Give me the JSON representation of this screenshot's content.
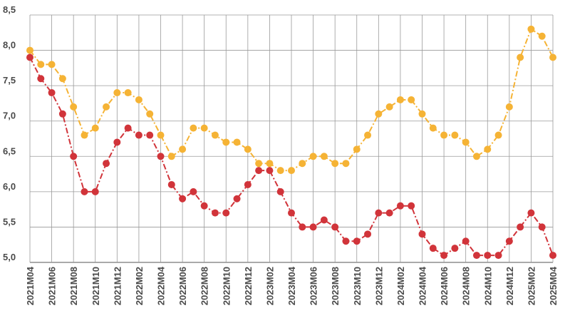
{
  "chart_data": {
    "type": "line",
    "title": "",
    "xlabel": "",
    "ylabel": "",
    "ylim": [
      5.0,
      8.5
    ],
    "yticks": [
      5.0,
      5.5,
      6.0,
      6.5,
      7.0,
      7.5,
      8.0,
      8.5
    ],
    "ytick_labels": [
      "5,0",
      "5,5",
      "6,0",
      "6,5",
      "7,0",
      "7,5",
      "8,0",
      "8,5"
    ],
    "grid": true,
    "legend": "none",
    "x": [
      "2021M04",
      "2021M05",
      "2021M06",
      "2021M07",
      "2021M08",
      "2021M09",
      "2021M10",
      "2021M11",
      "2021M12",
      "2022M01",
      "2022M02",
      "2022M03",
      "2022M04",
      "2022M05",
      "2022M06",
      "2022M07",
      "2022M08",
      "2022M09",
      "2022M10",
      "2022M11",
      "2022M12",
      "2023M01",
      "2023M02",
      "2023M03",
      "2023M04",
      "2023M05",
      "2023M06",
      "2023M07",
      "2023M08",
      "2023M09",
      "2023M10",
      "2023M11",
      "2023M12",
      "2024M01",
      "2024M02",
      "2024M03",
      "2024M04",
      "2024M05",
      "2024M06",
      "2024M07",
      "2024M08",
      "2024M09",
      "2024M10",
      "2024M11",
      "2024M12",
      "2025M01",
      "2025M02",
      "2025M03",
      "2025M04"
    ],
    "xtick_labels": [
      "2021M04",
      "2021M06",
      "2021M08",
      "2021M10",
      "2021M12",
      "2022M02",
      "2022M04",
      "2022M06",
      "2022M08",
      "2022M10",
      "2022M12",
      "2023M02",
      "2023M04",
      "2023M06",
      "2023M08",
      "2023M10",
      "2023M12",
      "2024M02",
      "2024M04",
      "2024M06",
      "2024M08",
      "2024M10",
      "2024M12",
      "2025M02",
      "2025M04"
    ],
    "series": [
      {
        "color": "#f5b335",
        "values": [
          8.0,
          7.8,
          7.8,
          7.6,
          7.2,
          6.8,
          6.9,
          7.2,
          7.4,
          7.4,
          7.3,
          7.1,
          6.8,
          6.5,
          6.6,
          6.9,
          6.9,
          6.8,
          6.7,
          6.7,
          6.6,
          6.4,
          6.4,
          6.3,
          6.3,
          6.4,
          6.5,
          6.5,
          6.4,
          6.4,
          6.6,
          6.8,
          7.1,
          7.2,
          7.3,
          7.3,
          7.1,
          6.9,
          6.8,
          6.8,
          6.7,
          6.5,
          6.6,
          6.8,
          7.2,
          7.9,
          8.3,
          8.2,
          7.9
        ]
      },
      {
        "color": "#d1343a",
        "values": [
          7.9,
          7.6,
          7.4,
          7.1,
          6.5,
          6.0,
          6.0,
          6.4,
          6.7,
          6.9,
          6.8,
          6.8,
          6.5,
          6.1,
          5.9,
          6.0,
          5.8,
          5.7,
          5.7,
          5.9,
          6.1,
          6.3,
          6.3,
          6.0,
          5.7,
          5.5,
          5.5,
          5.6,
          5.5,
          5.3,
          5.3,
          5.4,
          5.7,
          5.7,
          5.8,
          5.8,
          5.4,
          5.2,
          5.1,
          5.2,
          5.3,
          5.1,
          5.1,
          5.1,
          5.3,
          5.5,
          5.7,
          5.5,
          5.1
        ]
      }
    ]
  }
}
